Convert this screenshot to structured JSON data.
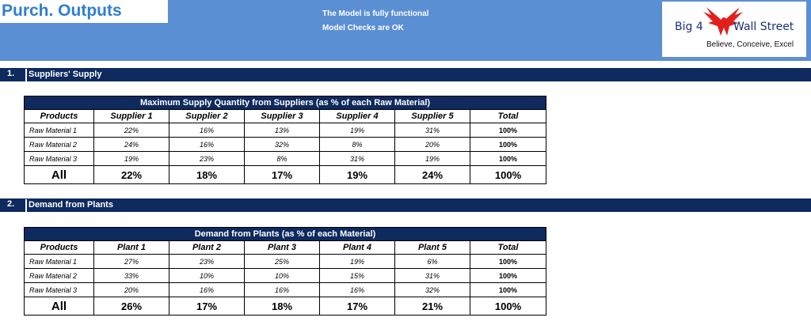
{
  "header": {
    "title": "Purch. Outputs",
    "status_lines": [
      "The Model is fully functional",
      "Model Checks are OK"
    ],
    "logo": {
      "text_left": "Big 4",
      "text_right": "Wall Street",
      "tagline": "Believe, Conceive, Excel"
    }
  },
  "sections": [
    {
      "number": "1.",
      "label": "Suppliers' Supply",
      "table": {
        "title": "Maximum Supply Quantity from Suppliers (as % of each Raw Material)",
        "columns": [
          "Products",
          "Supplier 1",
          "Supplier 2",
          "Supplier 3",
          "Supplier 4",
          "Supplier 5",
          "Total"
        ],
        "rows": [
          [
            "Raw Material 1",
            "22%",
            "16%",
            "13%",
            "19%",
            "31%",
            "100%"
          ],
          [
            "Raw Material 2",
            "24%",
            "16%",
            "32%",
            "8%",
            "20%",
            "100%"
          ],
          [
            "Raw Material 3",
            "19%",
            "23%",
            "8%",
            "31%",
            "19%",
            "100%"
          ]
        ],
        "all_row": [
          "All",
          "22%",
          "18%",
          "17%",
          "19%",
          "24%",
          "100%"
        ]
      }
    },
    {
      "number": "2.",
      "label": "Demand from Plants",
      "table": {
        "title": "Demand from Plants (as % of each Material)",
        "columns": [
          "Products",
          "Plant 1",
          "Plant 2",
          "Plant 3",
          "Plant 4",
          "Plant 5",
          "Total"
        ],
        "rows": [
          [
            "Raw Material 1",
            "27%",
            "23%",
            "25%",
            "19%",
            "6%",
            "100%"
          ],
          [
            "Raw Material 2",
            "33%",
            "10%",
            "10%",
            "15%",
            "31%",
            "100%"
          ],
          [
            "Raw Material 3",
            "20%",
            "16%",
            "16%",
            "16%",
            "32%",
            "100%"
          ]
        ],
        "all_row": [
          "All",
          "26%",
          "17%",
          "18%",
          "17%",
          "21%",
          "100%"
        ]
      }
    }
  ],
  "colors": {
    "header_blue": "#5b8fd4",
    "navy": "#0e2a5e",
    "title_blue": "#2f7fcf",
    "eagle_red": "#e0201c"
  }
}
